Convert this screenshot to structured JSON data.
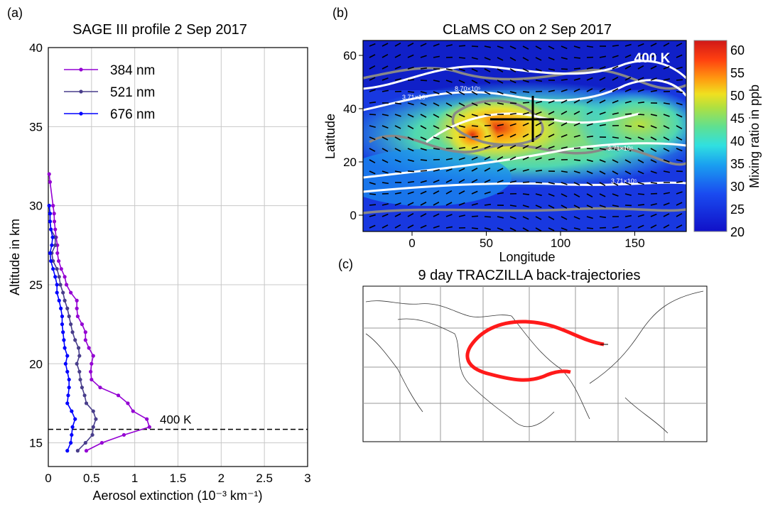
{
  "chart_data": [
    {
      "type": "line",
      "panel_label": "(a)",
      "title": "SAGE III profile 2 Sep 2017",
      "xlabel": "Aerosol extinction (10⁻³ km⁻¹)",
      "ylabel": "Altitude in km",
      "xlim": [
        0,
        3
      ],
      "ylim": [
        13.5,
        40
      ],
      "xticks": [
        "0",
        "0.5",
        "1",
        "1.5",
        "2",
        "2.5",
        "3"
      ],
      "yticks": [
        "15",
        "20",
        "25",
        "30",
        "35",
        "40"
      ],
      "grid": true,
      "legend": "top-left",
      "annotation": {
        "label": "400 K",
        "altitude": 15.85,
        "style": "dashed"
      },
      "series": [
        {
          "name": "384 nm",
          "color": "#9400D3",
          "altitude": [
            32.0,
            31.5,
            30,
            29.5,
            29,
            28.5,
            28,
            27.5,
            27,
            26.5,
            26,
            25.5,
            25,
            24.5,
            24,
            23.5,
            23,
            22.5,
            22,
            21.5,
            21,
            20.5,
            20,
            19.5,
            19,
            18.5,
            18,
            17.5,
            17,
            16.5,
            16,
            15.5,
            15,
            14.5
          ],
          "values": [
            0.01,
            0.02,
            0.055,
            0.067,
            0.07,
            0.08,
            0.09,
            0.105,
            0.105,
            0.12,
            0.15,
            0.19,
            0.21,
            0.26,
            0.33,
            0.33,
            0.34,
            0.39,
            0.43,
            0.43,
            0.47,
            0.52,
            0.5,
            0.49,
            0.5,
            0.6,
            0.81,
            0.92,
            0.98,
            1.14,
            1.17,
            0.875,
            0.62,
            0.44
          ]
        },
        {
          "name": "521 nm",
          "color": "#483D8B",
          "altitude": [
            30,
            29.5,
            29,
            28.5,
            28,
            27.5,
            27,
            26.5,
            26,
            25.5,
            25,
            24.5,
            24,
            23.5,
            23,
            22.5,
            22,
            21.5,
            21,
            20.5,
            20,
            19.5,
            19,
            18.5,
            18,
            17.5,
            17,
            16.5,
            16,
            15.5,
            15,
            14.5
          ],
          "values": [
            0.01,
            0.02,
            0.02,
            0.03,
            0.08,
            0.08,
            0.04,
            0.055,
            0.1,
            0.125,
            0.14,
            0.17,
            0.19,
            0.22,
            0.24,
            0.26,
            0.28,
            0.31,
            0.35,
            0.36,
            0.33,
            0.36,
            0.37,
            0.39,
            0.42,
            0.44,
            0.52,
            0.55,
            0.52,
            0.51,
            0.43,
            0.34
          ]
        },
        {
          "name": "676 nm",
          "color": "#0000FF",
          "altitude": [
            30,
            29.5,
            29,
            28.5,
            28,
            27.5,
            27,
            26.5,
            26,
            25.5,
            25,
            24.5,
            24,
            23.5,
            23,
            22.5,
            22,
            21.5,
            21,
            20.5,
            20,
            19.5,
            19,
            18.5,
            18,
            17.5,
            17,
            16.5,
            16,
            15.5,
            15,
            14.5
          ],
          "values": [
            0.01,
            0.02,
            0.02,
            0.03,
            0.05,
            0.04,
            0.02,
            0.03,
            0.055,
            0.08,
            0.1,
            0.1,
            0.125,
            0.145,
            0.16,
            0.16,
            0.17,
            0.18,
            0.19,
            0.22,
            0.2,
            0.22,
            0.24,
            0.24,
            0.23,
            0.22,
            0.27,
            0.31,
            0.28,
            0.27,
            0.26,
            0.22
          ]
        }
      ]
    },
    {
      "type": "heatmap",
      "panel_label": "(b)",
      "title": "CLaMS CO on 2 Sep 2017",
      "xlabel": "Longitude",
      "ylabel": "Latitude",
      "xticks": [
        "0",
        "50",
        "100",
        "150"
      ],
      "yticks": [
        "0",
        "20",
        "40",
        "60"
      ],
      "level_label": "400 K",
      "colorbar": {
        "label": "Mixing ratio in ppb",
        "ticks": [
          "60",
          "55",
          "50",
          "45",
          "40",
          "35",
          "30",
          "25",
          "20"
        ],
        "range": [
          20,
          62
        ]
      },
      "contour_labels": [
        "3.71×10⁵",
        "8.70×10⁵",
        "3.71×10⁵",
        "3.71×10⁵"
      ]
    },
    {
      "type": "map",
      "panel_label": "(c)",
      "title": "9 day TRACZILLA back-trajectories"
    }
  ],
  "colors": {
    "trajectory": "#ff1a1a",
    "grid": "#c8c8c8"
  }
}
